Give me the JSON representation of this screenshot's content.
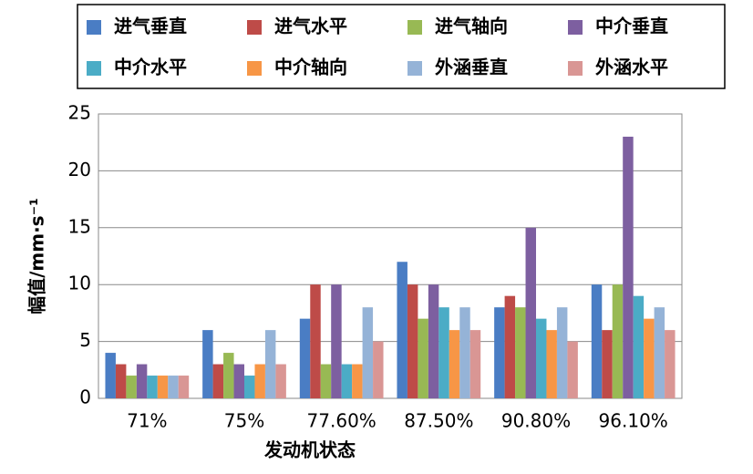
{
  "chart_data": {
    "type": "bar",
    "xlabel": "发动机状态",
    "ylabel": "幅值/mm·s⁻¹",
    "categories": [
      "71%",
      "75%",
      "77.60%",
      "87.50%",
      "90.80%",
      "96.10%"
    ],
    "series": [
      {
        "name": "进气垂直",
        "color": "#4a7dc4",
        "values": [
          4,
          6,
          7,
          12,
          8,
          10
        ]
      },
      {
        "name": "进气水平",
        "color": "#be4b48",
        "values": [
          3,
          3,
          10,
          10,
          9,
          6
        ]
      },
      {
        "name": "进气轴向",
        "color": "#98b954",
        "values": [
          2,
          4,
          3,
          7,
          8,
          10
        ]
      },
      {
        "name": "中介垂直",
        "color": "#7d5fa0",
        "values": [
          3,
          3,
          10,
          10,
          15,
          23
        ]
      },
      {
        "name": "中介水平",
        "color": "#4bacc6",
        "values": [
          2,
          2,
          3,
          8,
          7,
          9
        ]
      },
      {
        "name": "中介轴向",
        "color": "#f79646",
        "values": [
          2,
          3,
          3,
          6,
          6,
          7
        ]
      },
      {
        "name": "外涵垂直",
        "color": "#95b3d7",
        "values": [
          2,
          6,
          8,
          8,
          8,
          8
        ]
      },
      {
        "name": "外涵水平",
        "color": "#d99694",
        "values": [
          2,
          3,
          5,
          6,
          5,
          6
        ]
      }
    ],
    "ylim": [
      0,
      25
    ],
    "yticks": [
      0,
      5,
      10,
      15,
      20,
      25
    ],
    "grid": true
  }
}
